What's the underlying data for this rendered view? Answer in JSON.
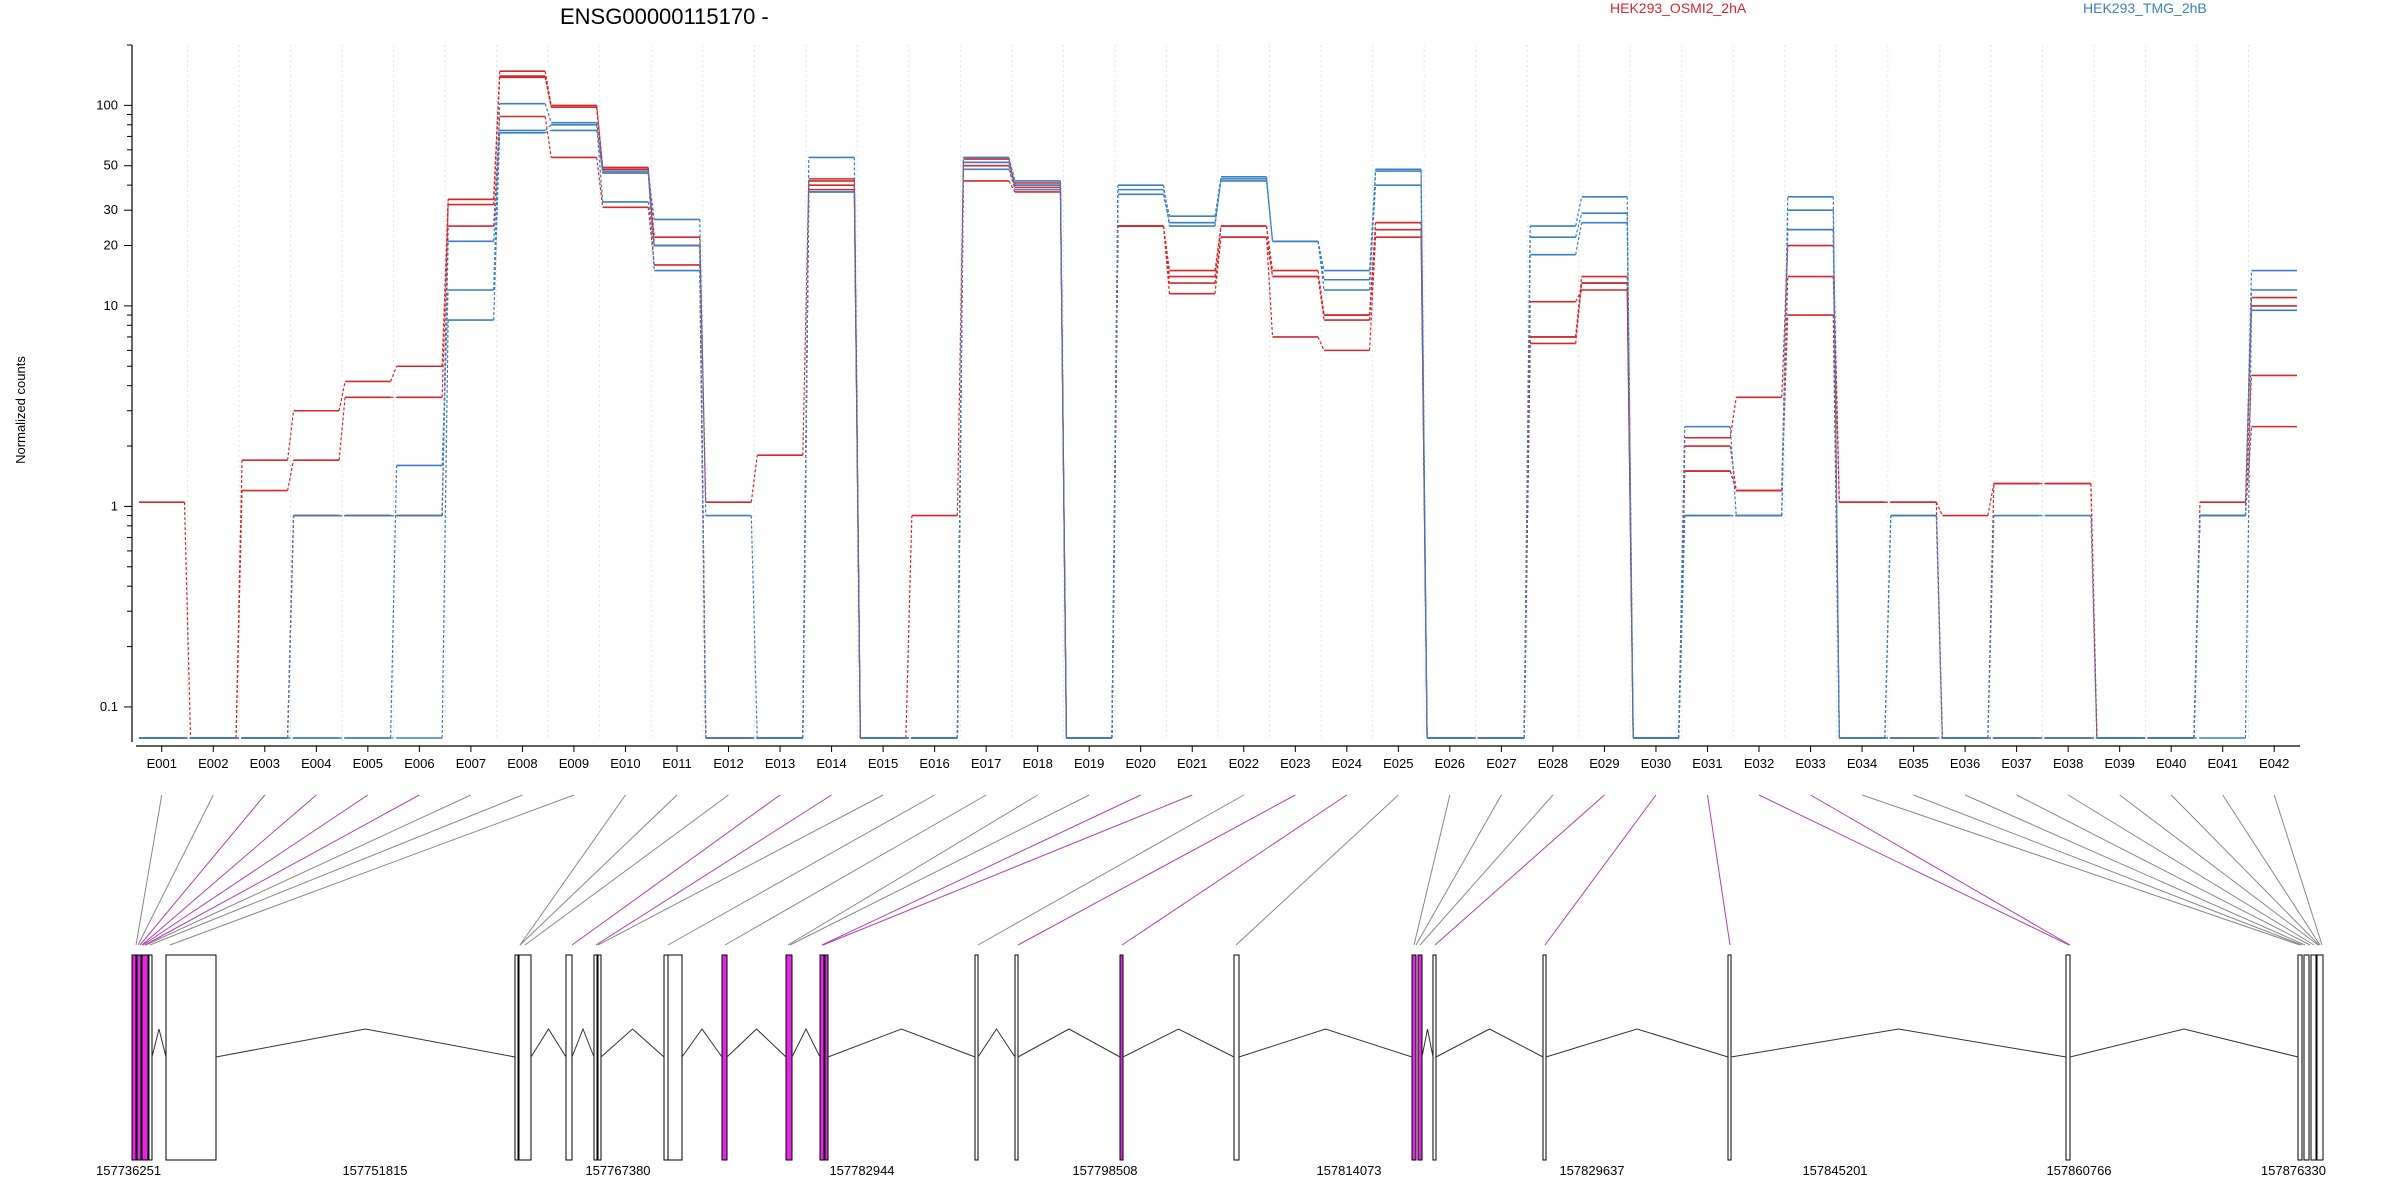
{
  "chart_data": {
    "type": "line",
    "title": "ENSG00000115170 -",
    "ylabel": "Normalized counts",
    "yscale": "log",
    "ylim": [
      0.07,
      200
    ],
    "yticks": [
      0.1,
      1,
      10,
      20,
      30,
      50,
      100
    ],
    "categories": [
      "E001",
      "E002",
      "E003",
      "E004",
      "E005",
      "E006",
      "E007",
      "E008",
      "E009",
      "E010",
      "E011",
      "E012",
      "E013",
      "E014",
      "E015",
      "E016",
      "E017",
      "E018",
      "E019",
      "E020",
      "E021",
      "E022",
      "E023",
      "E024",
      "E025",
      "E026",
      "E027",
      "E028",
      "E029",
      "E030",
      "E031",
      "E032",
      "E033",
      "E034",
      "E035",
      "E036",
      "E037",
      "E038",
      "E039",
      "E040",
      "E041",
      "E042"
    ],
    "legend": [
      {
        "name": "HEK293_OSMI2_2hA",
        "color": "#d62728"
      },
      {
        "name": "HEK293_TMG_2hB",
        "color": "#3a7fc1"
      }
    ],
    "series": [
      {
        "name": "HEK293_OSMI2_2hA",
        "color": "#d62728",
        "values": [
          1.05,
          0.07,
          1.7,
          3.0,
          4.2,
          5.0,
          34,
          148,
          100,
          49,
          22,
          1.05,
          1.8,
          42,
          0.07,
          0.9,
          52,
          41,
          0.07,
          25,
          15,
          25,
          14,
          9,
          26,
          0.07,
          0.07,
          7,
          14,
          0.07,
          2.2,
          3.5,
          20,
          1.05,
          1.05,
          0.9,
          1.3,
          1.3,
          0.07,
          0.07,
          1.05,
          11
        ]
      },
      {
        "name": "HEK293_OSMI2_2hA",
        "color": "#d62728",
        "values": [
          0.07,
          0.07,
          1.2,
          1.7,
          3.5,
          3.5,
          32,
          138,
          98,
          46,
          20,
          0.07,
          0.07,
          40,
          0.07,
          0.07,
          50,
          39,
          0.07,
          25,
          13,
          22,
          14,
          8.5,
          24,
          0.07,
          0.07,
          6.5,
          13,
          0.07,
          1.5,
          1.2,
          14,
          1.05,
          1.05,
          0.07,
          1.3,
          1.3,
          0.07,
          0.07,
          0.9,
          10
        ]
      },
      {
        "name": "HEK293_OSMI2_2hA",
        "color": "#d62728",
        "values": [
          0.07,
          0.07,
          0.07,
          0.9,
          0.9,
          0.9,
          25,
          88,
          55,
          31,
          16,
          0.07,
          0.07,
          38,
          0.07,
          0.07,
          42,
          37,
          0.07,
          25,
          11.5,
          22,
          7,
          6,
          22,
          0.07,
          0.07,
          10.5,
          12,
          0.07,
          2.0,
          1.2,
          9,
          0.07,
          0.07,
          0.07,
          0.07,
          0.07,
          0.07,
          0.07,
          0.9,
          2.5
        ]
      },
      {
        "name": "HEK293_OSMI2_2hA",
        "color": "#d62728",
        "values": [
          0.07,
          0.07,
          0.07,
          0.9,
          0.9,
          0.9,
          34,
          140,
          98,
          48,
          20,
          0.07,
          0.07,
          43,
          0.07,
          0.07,
          54,
          40,
          0.07,
          25,
          14,
          25,
          15,
          9,
          26,
          0.07,
          0.07,
          7,
          13,
          0.07,
          1.5,
          1.2,
          24,
          0.07,
          0.07,
          0.07,
          0.07,
          0.07,
          0.07,
          0.07,
          0.9,
          4.5
        ]
      },
      {
        "name": "HEK293_TMG_2hB",
        "color": "#3a7fc1",
        "values": [
          0.07,
          0.07,
          0.07,
          0.07,
          0.07,
          1.6,
          12,
          102,
          82,
          46,
          27,
          0.9,
          0.07,
          55,
          0.07,
          0.07,
          55,
          42,
          0.07,
          38,
          28,
          44,
          21,
          15,
          48,
          0.07,
          0.07,
          25,
          35,
          0.07,
          2.5,
          0.9,
          35,
          0.07,
          0.9,
          0.07,
          0.9,
          0.9,
          0.07,
          0.07,
          0.9,
          15
        ]
      },
      {
        "name": "HEK293_TMG_2hB",
        "color": "#3a7fc1",
        "values": [
          0.07,
          0.07,
          0.07,
          0.9,
          0.9,
          0.9,
          21,
          75,
          80,
          33,
          20,
          0.07,
          0.07,
          37,
          0.07,
          0.07,
          52,
          40,
          0.07,
          40,
          25,
          43,
          21,
          13.5,
          40,
          0.07,
          0.07,
          22,
          29,
          0.07,
          0.9,
          0.9,
          30,
          0.07,
          0.9,
          0.07,
          0.07,
          0.07,
          0.07,
          0.07,
          0.9,
          12
        ]
      },
      {
        "name": "HEK293_TMG_2hB",
        "color": "#3a7fc1",
        "values": [
          0.07,
          0.07,
          0.07,
          0.07,
          0.07,
          0.07,
          8.5,
          73,
          75,
          47,
          15,
          0.07,
          0.07,
          37,
          0.07,
          0.07,
          48,
          38,
          0.07,
          36,
          26,
          42,
          21,
          12,
          47,
          0.07,
          0.07,
          18,
          26,
          0.07,
          0.9,
          0.9,
          24,
          0.07,
          0.07,
          0.07,
          0.07,
          0.07,
          0.07,
          0.07,
          0.07,
          9.5
        ]
      }
    ],
    "coordinate_labels": [
      "157736251",
      "157751815",
      "157767380",
      "157782944",
      "157798508",
      "157814073",
      "157829637",
      "157845201",
      "157860766",
      "157876330"
    ]
  }
}
